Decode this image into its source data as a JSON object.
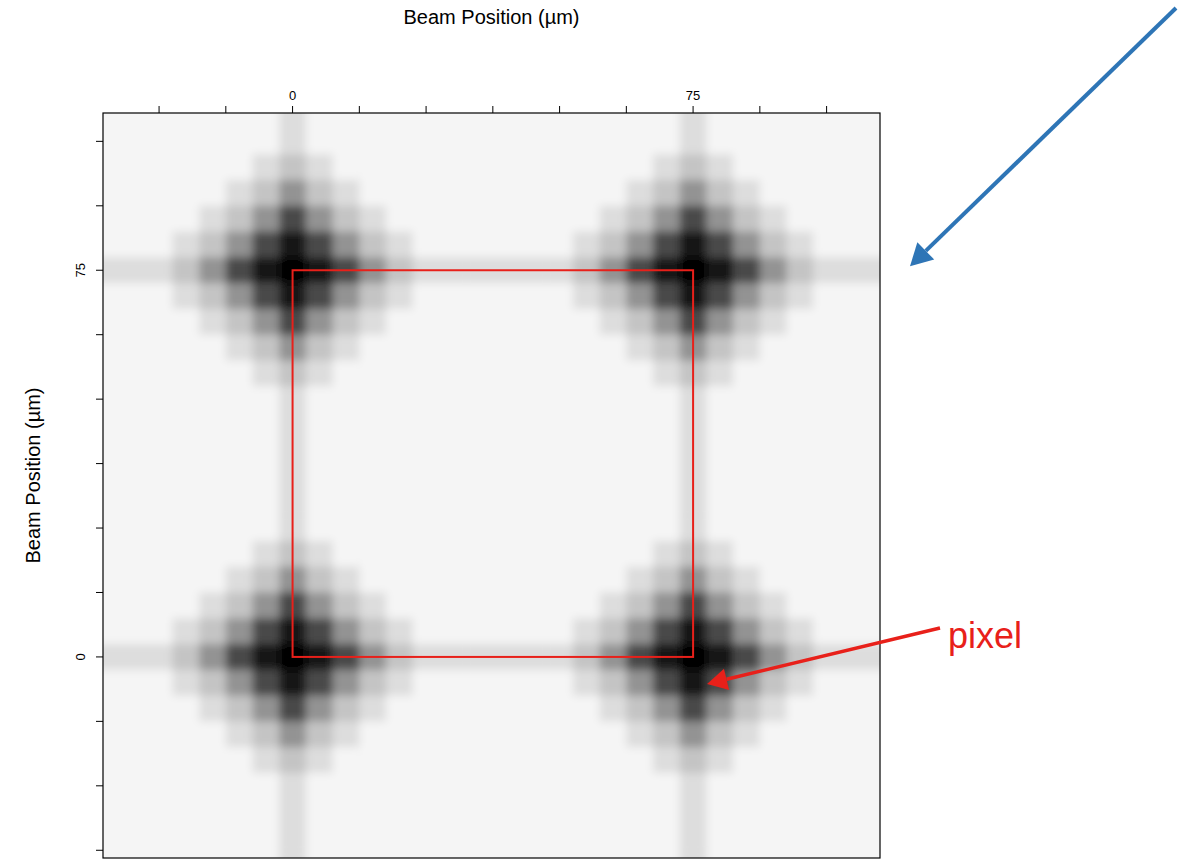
{
  "chart_data": {
    "type": "heatmap",
    "x_label": "Beam Position (µm)",
    "y_label": "Beam Position (µm)",
    "xlim": [
      -35.5,
      110
    ],
    "ylim": [
      -39,
      105.5
    ],
    "xticks": [
      0,
      75
    ],
    "yticks": [
      0,
      75
    ],
    "xticks_minor": [
      -25,
      -12.5,
      12.5,
      25,
      37.5,
      50,
      62.5,
      87.5,
      100
    ],
    "yticks_minor": [
      -37.5,
      -25,
      -12.5,
      12.5,
      25,
      37.5,
      50,
      62.5,
      87.5,
      100
    ],
    "grid": false,
    "color": "#000000",
    "x": [
      -35,
      -30,
      -25,
      -20,
      -15,
      -10,
      -5,
      0,
      5,
      10,
      15,
      20,
      25,
      30,
      35,
      40,
      45,
      50,
      55,
      60,
      65,
      70,
      75,
      80,
      85,
      90,
      95,
      100,
      105,
      110
    ],
    "y": [
      105,
      100,
      95,
      90,
      85,
      80,
      75,
      70,
      65,
      60,
      55,
      50,
      45,
      40,
      35,
      30,
      25,
      20,
      15,
      10,
      5,
      0,
      -5,
      -10,
      -15,
      -20,
      -25,
      -30,
      -35,
      -40
    ],
    "cells": [
      [
        0,
        0,
        0,
        0,
        0,
        0,
        0,
        1,
        0,
        0,
        0,
        0,
        0,
        0,
        0,
        0,
        0,
        0,
        0,
        0,
        0,
        0,
        1,
        0,
        0,
        0,
        0,
        0,
        0,
        0
      ],
      [
        0,
        0,
        0,
        0,
        0,
        0,
        0,
        1,
        0,
        0,
        0,
        0,
        0,
        0,
        0,
        0,
        0,
        0,
        0,
        0,
        0,
        0,
        1,
        0,
        0,
        0,
        0,
        0,
        0,
        0
      ],
      [
        0,
        0,
        0,
        0,
        0,
        0,
        1,
        2,
        1,
        0,
        0,
        0,
        0,
        0,
        0,
        0,
        0,
        0,
        0,
        0,
        0,
        1,
        2,
        1,
        0,
        0,
        0,
        0,
        0,
        0
      ],
      [
        0,
        0,
        0,
        0,
        0,
        1,
        2,
        4,
        2,
        1,
        0,
        0,
        0,
        0,
        0,
        0,
        0,
        0,
        0,
        0,
        1,
        2,
        4,
        2,
        1,
        0,
        0,
        0,
        0,
        0
      ],
      [
        0,
        0,
        0,
        0,
        1,
        2,
        4,
        7,
        4,
        2,
        1,
        0,
        0,
        0,
        0,
        0,
        0,
        0,
        0,
        1,
        2,
        4,
        7,
        4,
        2,
        1,
        0,
        0,
        0,
        0
      ],
      [
        0,
        0,
        0,
        1,
        2,
        4,
        7,
        9,
        7,
        4,
        2,
        1,
        0,
        0,
        0,
        0,
        0,
        0,
        1,
        2,
        4,
        7,
        9,
        7,
        4,
        2,
        1,
        0,
        0,
        0
      ],
      [
        1,
        1,
        1,
        2,
        4,
        7,
        9,
        10,
        9,
        7,
        4,
        2,
        1,
        1,
        1,
        1,
        1,
        1,
        2,
        4,
        7,
        9,
        10,
        9,
        7,
        4,
        2,
        1,
        1,
        1
      ],
      [
        0,
        0,
        0,
        1,
        2,
        4,
        7,
        9,
        7,
        4,
        2,
        1,
        0,
        0,
        0,
        0,
        0,
        0,
        1,
        2,
        4,
        7,
        9,
        7,
        4,
        2,
        1,
        0,
        0,
        0
      ],
      [
        0,
        0,
        0,
        0,
        1,
        2,
        4,
        7,
        4,
        2,
        1,
        0,
        0,
        0,
        0,
        0,
        0,
        0,
        0,
        1,
        2,
        4,
        7,
        4,
        2,
        1,
        0,
        0,
        0,
        0
      ],
      [
        0,
        0,
        0,
        0,
        0,
        1,
        2,
        4,
        2,
        1,
        0,
        0,
        0,
        0,
        0,
        0,
        0,
        0,
        0,
        0,
        1,
        2,
        4,
        2,
        1,
        0,
        0,
        0,
        0,
        0
      ],
      [
        0,
        0,
        0,
        0,
        0,
        0,
        1,
        2,
        1,
        0,
        0,
        0,
        0,
        0,
        0,
        0,
        0,
        0,
        0,
        0,
        0,
        1,
        2,
        1,
        0,
        0,
        0,
        0,
        0,
        0
      ],
      [
        0,
        0,
        0,
        0,
        0,
        0,
        0,
        1,
        0,
        0,
        0,
        0,
        0,
        0,
        0,
        0,
        0,
        0,
        0,
        0,
        0,
        0,
        1,
        0,
        0,
        0,
        0,
        0,
        0,
        0
      ],
      [
        0,
        0,
        0,
        0,
        0,
        0,
        0,
        1,
        0,
        0,
        0,
        0,
        0,
        0,
        0,
        0,
        0,
        0,
        0,
        0,
        0,
        0,
        1,
        0,
        0,
        0,
        0,
        0,
        0,
        0
      ],
      [
        0,
        0,
        0,
        0,
        0,
        0,
        0,
        1,
        0,
        0,
        0,
        0,
        0,
        0,
        0,
        0,
        0,
        0,
        0,
        0,
        0,
        0,
        1,
        0,
        0,
        0,
        0,
        0,
        0,
        0
      ],
      [
        0,
        0,
        0,
        0,
        0,
        0,
        0,
        1,
        0,
        0,
        0,
        0,
        0,
        0,
        0,
        0,
        0,
        0,
        0,
        0,
        0,
        0,
        1,
        0,
        0,
        0,
        0,
        0,
        0,
        0
      ],
      [
        0,
        0,
        0,
        0,
        0,
        0,
        0,
        1,
        0,
        0,
        0,
        0,
        0,
        0,
        0,
        0,
        0,
        0,
        0,
        0,
        0,
        0,
        1,
        0,
        0,
        0,
        0,
        0,
        0,
        0
      ],
      [
        0,
        0,
        0,
        0,
        0,
        0,
        0,
        1,
        0,
        0,
        0,
        0,
        0,
        0,
        0,
        0,
        0,
        0,
        0,
        0,
        0,
        0,
        1,
        0,
        0,
        0,
        0,
        0,
        0,
        0
      ],
      [
        0,
        0,
        0,
        0,
        0,
        0,
        1,
        2,
        1,
        0,
        0,
        0,
        0,
        0,
        0,
        0,
        0,
        0,
        0,
        0,
        0,
        1,
        2,
        1,
        0,
        0,
        0,
        0,
        0,
        0
      ],
      [
        0,
        0,
        0,
        0,
        0,
        1,
        2,
        4,
        2,
        1,
        0,
        0,
        0,
        0,
        0,
        0,
        0,
        0,
        0,
        0,
        1,
        2,
        4,
        2,
        1,
        0,
        0,
        0,
        0,
        0
      ],
      [
        0,
        0,
        0,
        0,
        1,
        2,
        4,
        7,
        4,
        2,
        1,
        0,
        0,
        0,
        0,
        0,
        0,
        0,
        0,
        1,
        2,
        4,
        7,
        4,
        2,
        1,
        0,
        0,
        0,
        0
      ],
      [
        0,
        0,
        0,
        1,
        2,
        4,
        7,
        9,
        7,
        4,
        2,
        1,
        0,
        0,
        0,
        0,
        0,
        0,
        1,
        2,
        4,
        7,
        9,
        7,
        4,
        2,
        1,
        0,
        0,
        0
      ],
      [
        1,
        1,
        1,
        2,
        4,
        7,
        9,
        10,
        9,
        7,
        4,
        2,
        1,
        1,
        1,
        1,
        1,
        1,
        2,
        4,
        7,
        9,
        10,
        9,
        7,
        4,
        2,
        1,
        1,
        1
      ],
      [
        0,
        0,
        0,
        1,
        2,
        4,
        7,
        9,
        7,
        4,
        2,
        1,
        0,
        0,
        0,
        0,
        0,
        0,
        1,
        2,
        4,
        7,
        9,
        7,
        4,
        2,
        1,
        0,
        0,
        0
      ],
      [
        0,
        0,
        0,
        0,
        1,
        2,
        4,
        7,
        4,
        2,
        1,
        0,
        0,
        0,
        0,
        0,
        0,
        0,
        0,
        1,
        2,
        4,
        7,
        4,
        2,
        1,
        0,
        0,
        0,
        0
      ],
      [
        0,
        0,
        0,
        0,
        0,
        1,
        2,
        4,
        2,
        1,
        0,
        0,
        0,
        0,
        0,
        0,
        0,
        0,
        0,
        0,
        1,
        2,
        4,
        2,
        1,
        0,
        0,
        0,
        0,
        0
      ],
      [
        0,
        0,
        0,
        0,
        0,
        0,
        1,
        2,
        1,
        0,
        0,
        0,
        0,
        0,
        0,
        0,
        0,
        0,
        0,
        0,
        0,
        1,
        2,
        1,
        0,
        0,
        0,
        0,
        0,
        0
      ],
      [
        0,
        0,
        0,
        0,
        0,
        0,
        0,
        1,
        0,
        0,
        0,
        0,
        0,
        0,
        0,
        0,
        0,
        0,
        0,
        0,
        0,
        0,
        1,
        0,
        0,
        0,
        0,
        0,
        0,
        0
      ],
      [
        0,
        0,
        0,
        0,
        0,
        0,
        0,
        1,
        0,
        0,
        0,
        0,
        0,
        0,
        0,
        0,
        0,
        0,
        0,
        0,
        0,
        0,
        1,
        0,
        0,
        0,
        0,
        0,
        0,
        0
      ],
      [
        0,
        0,
        0,
        0,
        0,
        0,
        0,
        1,
        0,
        0,
        0,
        0,
        0,
        0,
        0,
        0,
        0,
        0,
        0,
        0,
        0,
        0,
        1,
        0,
        0,
        0,
        0,
        0,
        0,
        0
      ],
      [
        0,
        0,
        0,
        0,
        0,
        0,
        0,
        1,
        0,
        0,
        0,
        0,
        0,
        0,
        0,
        0,
        0,
        0,
        0,
        0,
        0,
        0,
        1,
        0,
        0,
        0,
        0,
        0,
        0,
        0
      ]
    ],
    "annotations": [
      {
        "text": "pixel",
        "x": [
          0,
          75
        ],
        "y": [
          0,
          75
        ],
        "color": "#e8201a"
      }
    ]
  }
}
